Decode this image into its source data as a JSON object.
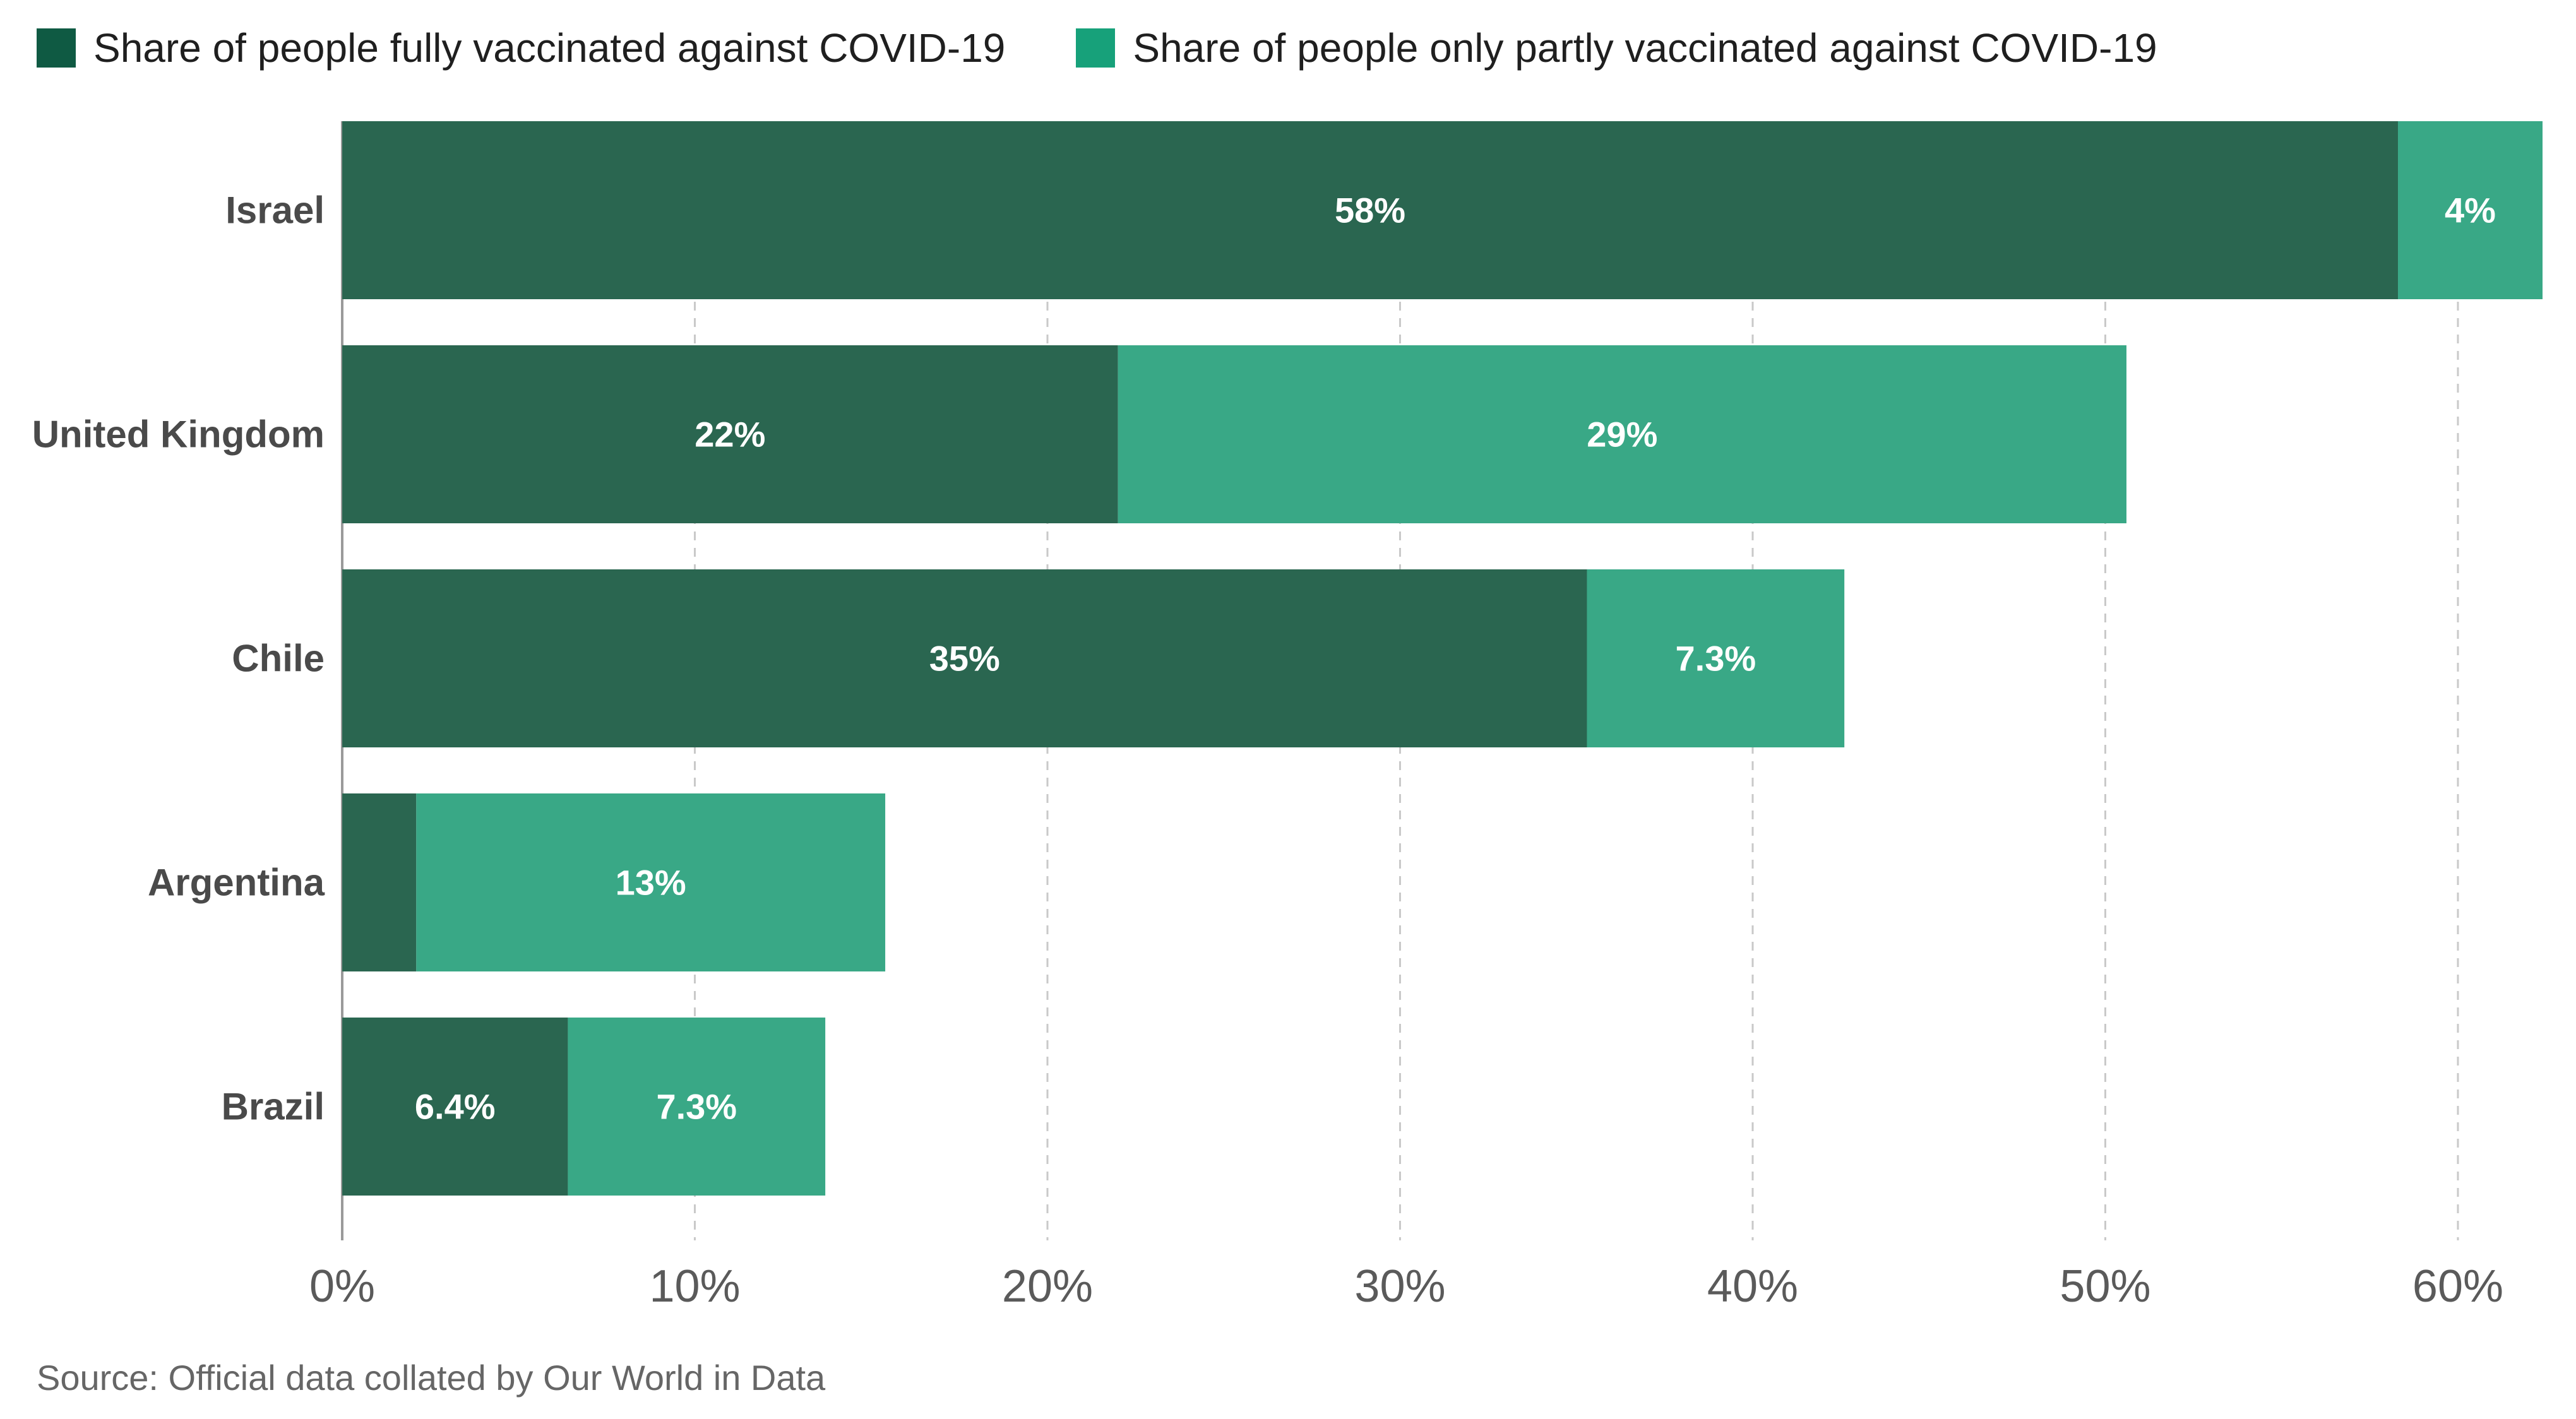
{
  "chart_data": {
    "type": "bar",
    "orientation": "horizontal",
    "stacked": true,
    "categories": [
      "Israel",
      "United Kingdom",
      "Chile",
      "Argentina",
      "Brazil"
    ],
    "series": [
      {
        "name": "Share of people fully vaccinated against COVID-19",
        "color": "#2a6650",
        "values": [
          58.3,
          22,
          35.3,
          2.1,
          6.4
        ],
        "labels": [
          "58%",
          "22%",
          "35%",
          "",
          "6.4%"
        ]
      },
      {
        "name": "Share of people only partly vaccinated against COVID-19",
        "color": "#39a886",
        "values": [
          4.1,
          28.6,
          7.3,
          13.3,
          7.3
        ],
        "labels": [
          "4%",
          "29%",
          "7.3%",
          "13%",
          "7.3%"
        ]
      }
    ],
    "xlim": [
      0,
      62.4
    ],
    "xticks": [
      0,
      10,
      20,
      30,
      40,
      50,
      60
    ],
    "xtick_labels": [
      "0%",
      "10%",
      "20%",
      "30%",
      "40%",
      "50%",
      "60%"
    ],
    "grid": "vertical-dashed",
    "legend_position": "top-left"
  },
  "legend_swatch_colors": [
    "#0f5a43",
    "#17a17a"
  ],
  "source": "Source: Official data collated by Our World in Data"
}
